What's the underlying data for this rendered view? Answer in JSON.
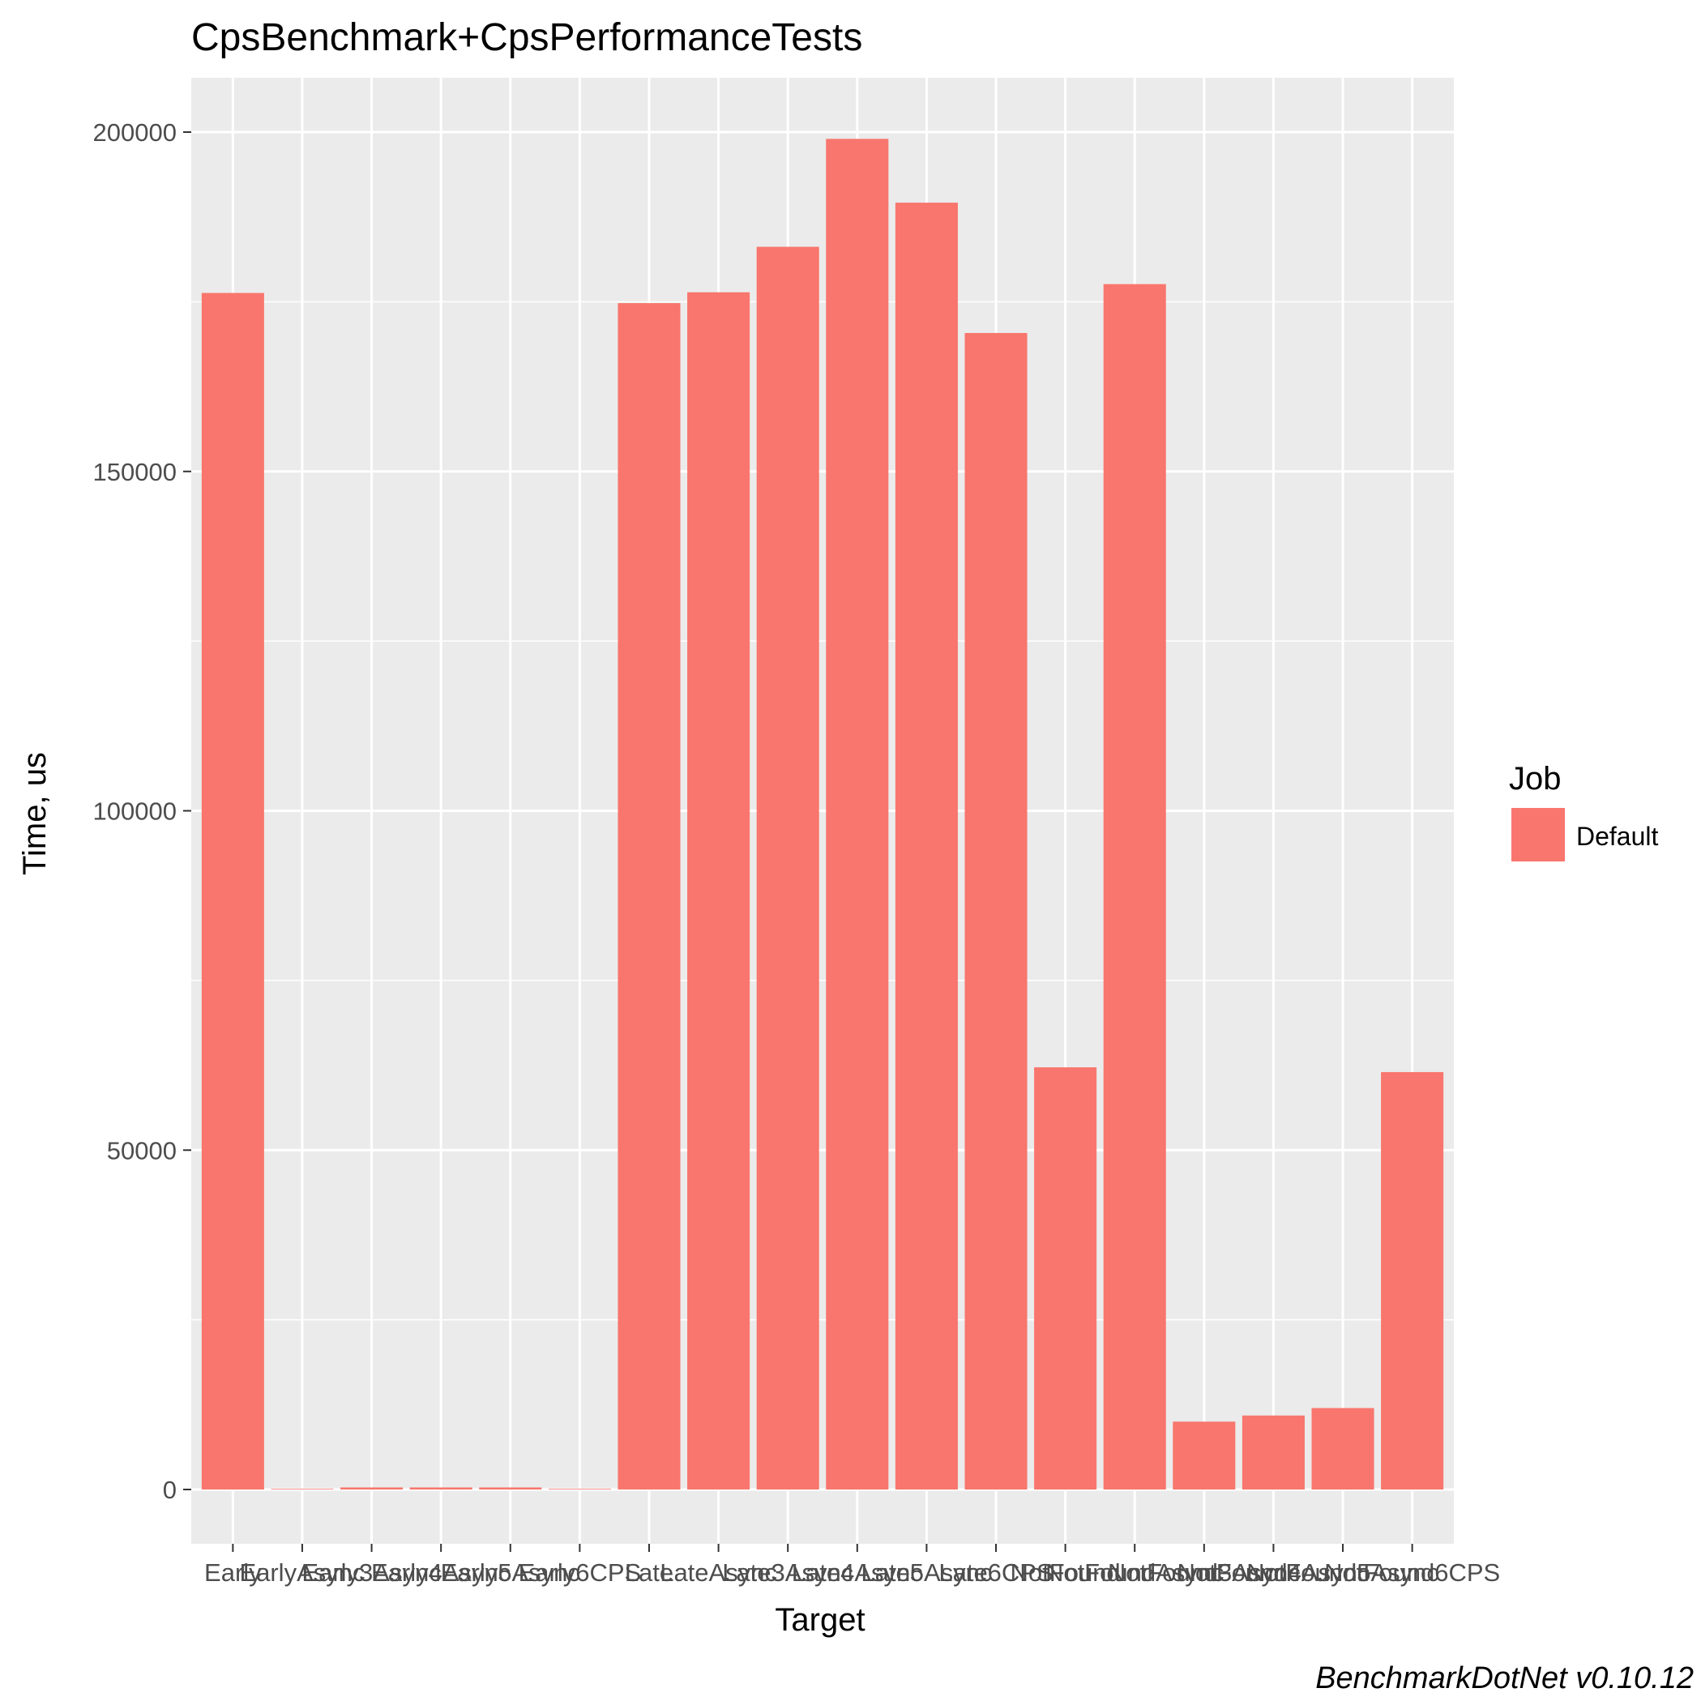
{
  "chart_data": {
    "type": "bar",
    "title": "CpsBenchmark+CpsPerformanceTests",
    "xlabel": "Target",
    "ylabel": "Time, us",
    "ylim": [
      -8000,
      208000
    ],
    "yticks": [
      0,
      50000,
      100000,
      150000,
      200000
    ],
    "grid": true,
    "legend_position": "right",
    "legend": {
      "title": "Job",
      "entries": [
        "Default"
      ]
    },
    "categories": [
      "Early",
      "EarlyAsync",
      "Early3Async",
      "Early4Async",
      "Early5Async",
      "Early6CPS",
      "Late",
      "LateAsync",
      "Late3Async",
      "Late4Async",
      "Late5Async",
      "Late6CPS",
      "NotFound",
      "NotFoundAsync",
      "NotFound3Async",
      "NotFound4Async",
      "NotFound5Async",
      "NotFound6CPS"
    ],
    "series": [
      {
        "name": "Default",
        "color": "#F8766D",
        "values": [
          176300,
          60,
          300,
          300,
          300,
          60,
          174800,
          176400,
          183100,
          199000,
          189600,
          170400,
          62200,
          177600,
          10000,
          10900,
          12000,
          61500
        ]
      }
    ],
    "caption": "BenchmarkDotNet v0.10.12"
  }
}
